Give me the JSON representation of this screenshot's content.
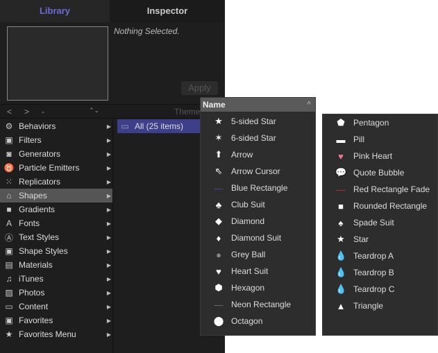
{
  "tabs": {
    "library": "Library",
    "inspector": "Inspector"
  },
  "accent": "#6c6cd8",
  "preview": {
    "status": "Nothing Selected.",
    "apply": "Apply"
  },
  "nav": {
    "back": "<",
    "forward": ">",
    "path": "-",
    "stepper": "⌃⌄",
    "theme": "Theme"
  },
  "sidebar": [
    {
      "label": "Behaviors",
      "icon": "gear-icon",
      "g": "⚙"
    },
    {
      "label": "Filters",
      "icon": "filters-icon",
      "g": "▣"
    },
    {
      "label": "Generators",
      "icon": "generators-icon",
      "g": "◙"
    },
    {
      "label": "Particle Emitters",
      "icon": "emitter-icon",
      "g": "♉"
    },
    {
      "label": "Replicators",
      "icon": "replicator-icon",
      "g": "⁙"
    },
    {
      "label": "Shapes",
      "icon": "shapes-icon",
      "g": "⌂",
      "selected": true
    },
    {
      "label": "Gradients",
      "icon": "gradient-icon",
      "g": "■"
    },
    {
      "label": "Fonts",
      "icon": "font-icon",
      "g": "A"
    },
    {
      "label": "Text Styles",
      "icon": "text-styles-icon",
      "g": "Ⓐ"
    },
    {
      "label": "Shape Styles",
      "icon": "shape-styles-icon",
      "g": "▣"
    },
    {
      "label": "Materials",
      "icon": "materials-icon",
      "g": "▤"
    },
    {
      "label": "iTunes",
      "icon": "music-icon",
      "g": "♫"
    },
    {
      "label": "Photos",
      "icon": "photos-icon",
      "g": "▨"
    },
    {
      "label": "Content",
      "icon": "folder-icon",
      "g": "▭"
    },
    {
      "label": "Favorites",
      "icon": "favorites-icon",
      "g": "▣"
    },
    {
      "label": "Favorites Menu",
      "icon": "favorites-menu-icon",
      "g": "★"
    }
  ],
  "folder": {
    "label": "All (25 items)",
    "icon": "folder-icon"
  },
  "list_header": {
    "label": "Name",
    "sort": "^"
  },
  "items1": [
    {
      "label": "5-sided Star",
      "icon": "star-icon",
      "g": "★"
    },
    {
      "label": "6-sided Star",
      "icon": "six-star-icon",
      "g": "✶"
    },
    {
      "label": "Arrow",
      "icon": "arrow-up-icon",
      "g": "⬆"
    },
    {
      "label": "Arrow Cursor",
      "icon": "cursor-icon",
      "g": "⇖"
    },
    {
      "label": "Blue Rectangle",
      "icon": "blue-line-icon",
      "g": "—",
      "c": "#4a4aa0"
    },
    {
      "label": "Club Suit",
      "icon": "club-icon",
      "g": "♣"
    },
    {
      "label": "Diamond",
      "icon": "diamond-icon",
      "g": "◆"
    },
    {
      "label": "Diamond Suit",
      "icon": "diamond-suit-icon",
      "g": "♦"
    },
    {
      "label": "Grey Ball",
      "icon": "ball-icon",
      "g": "●",
      "c": "#888"
    },
    {
      "label": "Heart Suit",
      "icon": "heart-icon",
      "g": "♥"
    },
    {
      "label": "Hexagon",
      "icon": "hexagon-icon",
      "g": "⬢"
    },
    {
      "label": "Neon Rectangle",
      "icon": "neon-line-icon",
      "g": "—",
      "c": "#6a6a90"
    },
    {
      "label": "Octagon",
      "icon": "octagon-icon",
      "g": "⬤"
    }
  ],
  "items2": [
    {
      "label": "Pentagon",
      "icon": "pentagon-icon",
      "g": "⬟"
    },
    {
      "label": "Pill",
      "icon": "pill-icon",
      "g": "▬"
    },
    {
      "label": "Pink Heart",
      "icon": "pink-heart-icon",
      "g": "♥",
      "c": "#f07a8a"
    },
    {
      "label": "Quote Bubble",
      "icon": "bubble-icon",
      "g": "💬"
    },
    {
      "label": "Red Rectangle Fade",
      "icon": "red-line-icon",
      "g": "—",
      "c": "#c03030"
    },
    {
      "label": "Rounded Rectangle",
      "icon": "rounded-rect-icon",
      "g": "■"
    },
    {
      "label": "Spade Suit",
      "icon": "spade-icon",
      "g": "♠"
    },
    {
      "label": "Star",
      "icon": "star-icon",
      "g": "★"
    },
    {
      "label": "Teardrop A",
      "icon": "teardrop-icon",
      "g": "💧"
    },
    {
      "label": "Teardrop B",
      "icon": "teardrop-icon",
      "g": "💧"
    },
    {
      "label": "Teardrop C",
      "icon": "teardrop-icon",
      "g": "💧"
    },
    {
      "label": "Triangle",
      "icon": "triangle-icon",
      "g": "▲"
    }
  ]
}
